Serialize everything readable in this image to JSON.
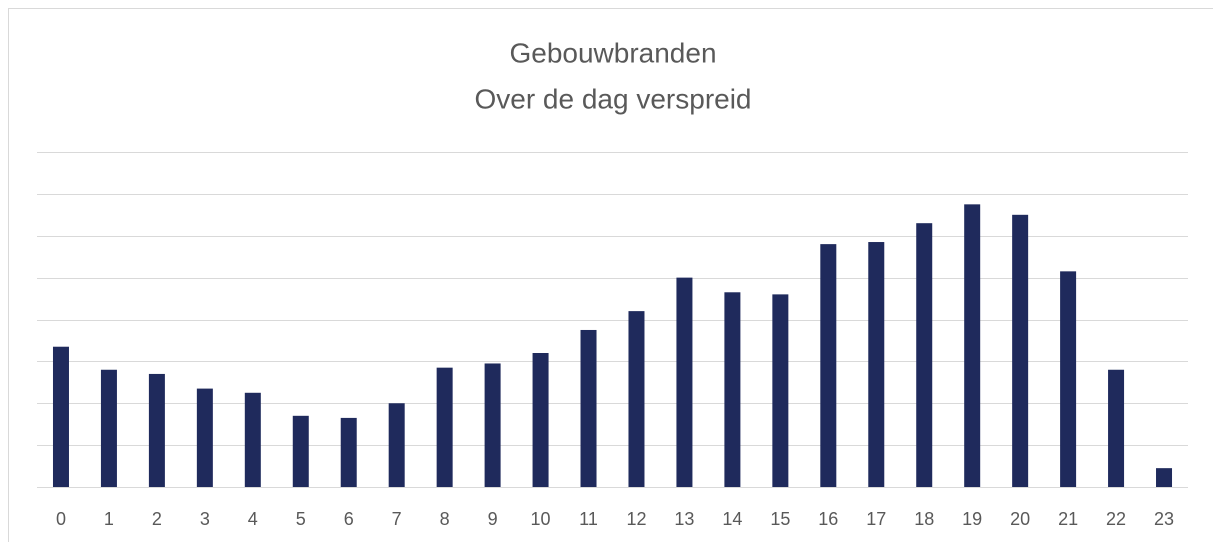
{
  "chart_data": {
    "type": "bar",
    "title": "Gebouwbranden",
    "subtitle": "Over de dag verspreid",
    "categories": [
      "0",
      "1",
      "2",
      "3",
      "4",
      "5",
      "6",
      "7",
      "8",
      "9",
      "10",
      "11",
      "12",
      "13",
      "14",
      "15",
      "16",
      "17",
      "18",
      "19",
      "20",
      "21",
      "22",
      "23"
    ],
    "values": [
      3.35,
      2.8,
      2.7,
      2.35,
      2.25,
      1.7,
      1.65,
      2.0,
      2.85,
      2.95,
      3.2,
      3.75,
      4.2,
      5.0,
      4.65,
      4.6,
      5.8,
      5.85,
      6.3,
      6.75,
      6.5,
      5.15,
      2.8,
      0.45
    ],
    "color": "#1f2a5c",
    "ylim": [
      0,
      8
    ],
    "yticks": [
      0,
      1,
      2,
      3,
      4,
      5,
      6,
      7,
      8
    ],
    "grid": true
  }
}
